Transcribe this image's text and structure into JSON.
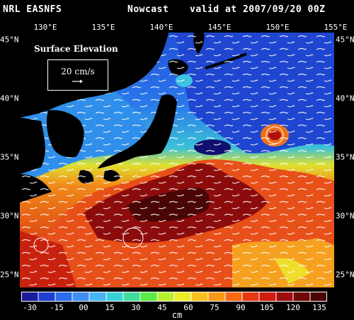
{
  "header": {
    "source": "NRL EASNFS",
    "product": "Nowcast",
    "valid": "valid at 2007/09/20 00Z"
  },
  "map": {
    "title": "Surface Elevation",
    "vector_scale_label": "20 cm/s",
    "lon_labels": [
      "130°E",
      "135°E",
      "140°E",
      "145°E",
      "150°E",
      "155°E"
    ],
    "lat_labels": [
      "45°N",
      "40°N",
      "35°N",
      "30°N",
      "25°N"
    ]
  },
  "colorbar": {
    "ticks": [
      "-30",
      "-15",
      "00",
      "15",
      "30",
      "45",
      "60",
      "75",
      "90",
      "105",
      "120",
      "135"
    ],
    "unit": "cm",
    "colors": [
      "#1a1a9e",
      "#1f3fd0",
      "#2b6ce8",
      "#3e8ff0",
      "#48b4f4",
      "#3ad0d8",
      "#40dc9c",
      "#5aea48",
      "#b8f030",
      "#ecec28",
      "#f8c020",
      "#fa9818",
      "#f86a14",
      "#e83a10",
      "#d01c10",
      "#a00c0c",
      "#700808",
      "#4a0505"
    ]
  }
}
